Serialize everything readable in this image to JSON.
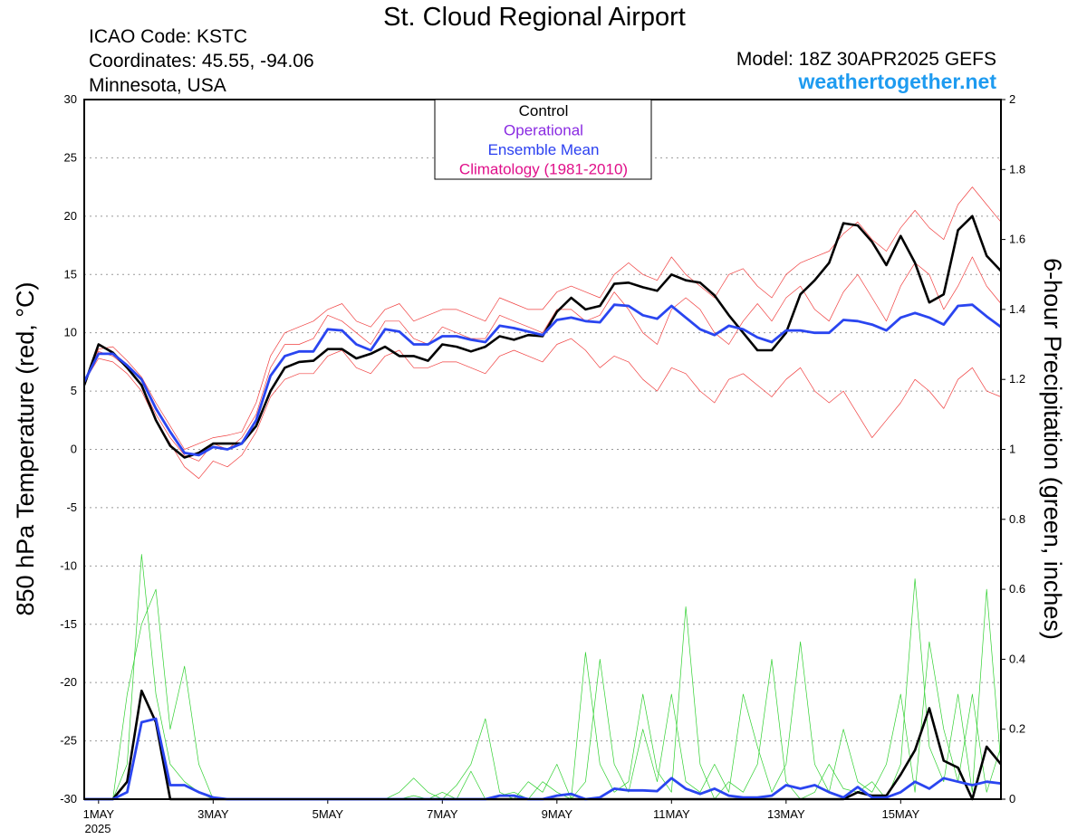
{
  "chart_data": {
    "type": "line",
    "title": "St. Cloud Regional Airport",
    "info": [
      "ICAO Code: KSTC",
      "Coordinates: 45.55, -94.06",
      "Minnesota, USA"
    ],
    "model": "Model: 18Z 30APR2025 GEFS",
    "source": "weathertogether.net",
    "ylabel": "850 hPa Temperature (red, °C)",
    "y2label": "6-hour Precipitation (green, inches)",
    "year": "2025",
    "legend": [
      {
        "name": "Control",
        "color": "#000000"
      },
      {
        "name": "Operational",
        "color": "#8a2be2"
      },
      {
        "name": "Ensemble Mean",
        "color": "#2a3ff0"
      },
      {
        "name": "Climatology (1981-2010)",
        "color": "#e0108a"
      }
    ],
    "grid": true,
    "xlim": [
      -6,
      378
    ],
    "xticks": [
      {
        "value": 0,
        "label": "1MAY"
      },
      {
        "value": 48,
        "label": "3MAY"
      },
      {
        "value": 96,
        "label": "5MAY"
      },
      {
        "value": 144,
        "label": "7MAY"
      },
      {
        "value": 192,
        "label": "9MAY"
      },
      {
        "value": 240,
        "label": "11MAY"
      },
      {
        "value": 288,
        "label": "13MAY"
      },
      {
        "value": 336,
        "label": "15MAY"
      }
    ],
    "ylim": [
      -30,
      30
    ],
    "yticks": [
      -30,
      -25,
      -20,
      -15,
      -10,
      -5,
      0,
      5,
      10,
      15,
      20,
      25,
      30
    ],
    "y2lim": [
      0,
      2
    ],
    "y2ticks": [
      0,
      0.2,
      0.4,
      0.6,
      0.8,
      1,
      1.2,
      1.4,
      1.6,
      1.8,
      2
    ],
    "x": [
      -6,
      0,
      6,
      12,
      18,
      24,
      30,
      36,
      42,
      48,
      54,
      60,
      66,
      72,
      78,
      84,
      90,
      96,
      102,
      108,
      114,
      120,
      126,
      132,
      138,
      144,
      150,
      156,
      162,
      168,
      174,
      180,
      186,
      192,
      198,
      204,
      210,
      216,
      222,
      228,
      234,
      240,
      246,
      252,
      258,
      264,
      270,
      276,
      282,
      288,
      294,
      300,
      306,
      312,
      318,
      324,
      330,
      336,
      342,
      348,
      354,
      360,
      366,
      372,
      378
    ],
    "series": [
      {
        "color": "#f04040",
        "width": 0.7,
        "values": [
          5.6,
          8.6,
          8.8,
          7.6,
          6.2,
          4.0,
          2.0,
          0.0,
          0.5,
          1.0,
          1.2,
          1.5,
          4.0,
          8.0,
          10.0,
          10.5,
          11.0,
          12.0,
          12.5,
          11.0,
          10.5,
          12.0,
          12.5,
          11.0,
          11.5,
          12.0,
          12.0,
          11.5,
          11.0,
          13.0,
          12.5,
          12.0,
          12.0,
          13.5,
          14.0,
          13.5,
          13.0,
          15.0,
          16.0,
          15.0,
          14.5,
          16.5,
          15.0,
          14.0,
          13.0,
          15.0,
          15.5,
          14.0,
          13.0,
          15.0,
          16.0,
          16.5,
          17.0,
          18.5,
          19.5,
          18.0,
          17.0,
          19.0,
          20.5,
          19.0,
          18.0,
          21.0,
          22.5,
          21.0,
          19.5
        ]
      },
      {
        "color": "#f04040",
        "width": 0.7,
        "values": [
          5.8,
          7.8,
          7.5,
          6.5,
          5.0,
          2.5,
          0.5,
          -1.5,
          -2.5,
          -1.0,
          -1.5,
          -0.5,
          1.5,
          4.5,
          6.0,
          6.5,
          6.5,
          8.0,
          8.5,
          7.0,
          6.5,
          8.0,
          8.5,
          7.0,
          7.0,
          7.5,
          7.5,
          7.0,
          6.5,
          8.0,
          8.5,
          8.0,
          7.5,
          9.0,
          9.5,
          8.5,
          7.0,
          8.0,
          7.5,
          6.0,
          5.0,
          7.0,
          6.5,
          5.0,
          4.0,
          6.0,
          6.5,
          5.5,
          4.5,
          6.0,
          7.0,
          5.0,
          4.0,
          5.0,
          3.0,
          1.0,
          2.5,
          4.0,
          6.0,
          5.0,
          3.5,
          6.0,
          7.0,
          5.0,
          4.5
        ]
      },
      {
        "color": "#f04040",
        "width": 0.7,
        "values": [
          5.5,
          8.4,
          8.0,
          7.0,
          5.5,
          3.0,
          1.0,
          -0.5,
          -1.0,
          0.5,
          0.0,
          1.0,
          3.0,
          7.0,
          9.0,
          9.0,
          9.5,
          11.5,
          11.0,
          10.0,
          9.0,
          11.0,
          11.0,
          9.5,
          9.0,
          10.5,
          10.0,
          9.5,
          9.5,
          11.5,
          11.0,
          10.5,
          10.0,
          12.0,
          12.0,
          11.0,
          11.5,
          13.5,
          12.0,
          10.0,
          9.0,
          12.0,
          13.0,
          12.0,
          10.0,
          9.0,
          11.0,
          12.5,
          11.0,
          13.0,
          14.0,
          12.0,
          11.0,
          13.5,
          15.0,
          13.0,
          11.0,
          14.0,
          16.0,
          15.0,
          12.0,
          14.0,
          16.5,
          14.0,
          12.5
        ]
      },
      {
        "color": "#30d030",
        "width": 0.7,
        "axis": "y2",
        "values": [
          0,
          0,
          0,
          0.1,
          0.7,
          0.3,
          0.1,
          0.05,
          0.02,
          0,
          0,
          0,
          0,
          0,
          0,
          0,
          0,
          0,
          0,
          0,
          0,
          0,
          0,
          0.01,
          0,
          0.02,
          0,
          0.08,
          0,
          0.01,
          0.02,
          0,
          0.05,
          0.02,
          0,
          0.42,
          0.1,
          0.02,
          0.05,
          0.3,
          0.08,
          0.02,
          0.55,
          0.1,
          0,
          0.05,
          0.02,
          0.1,
          0.4,
          0.05,
          0,
          0.02,
          0.1,
          0.03,
          0.02,
          0.05,
          0,
          0.1,
          0.63,
          0.15,
          0.05,
          0.3,
          0.02,
          0.6,
          0.1
        ]
      },
      {
        "color": "#30d030",
        "width": 0.7,
        "axis": "y2",
        "values": [
          0,
          0,
          0,
          0.3,
          0.5,
          0.6,
          0.2,
          0.38,
          0.1,
          0,
          0,
          0,
          0,
          0,
          0,
          0,
          0,
          0,
          0,
          0,
          0,
          0,
          0.02,
          0.06,
          0.02,
          0,
          0.04,
          0.1,
          0.23,
          0.02,
          0,
          0.05,
          0.02,
          0.1,
          0,
          0.05,
          0.4,
          0.1,
          0.02,
          0.2,
          0.05,
          0.3,
          0.05,
          0.02,
          0.1,
          0.02,
          0.3,
          0.15,
          0.02,
          0.1,
          0.45,
          0.1,
          0.02,
          0.2,
          0.05,
          0.02,
          0.1,
          0.3,
          0.02,
          0.45,
          0.2,
          0.05,
          0.3,
          0.02,
          0.15
        ]
      },
      {
        "color": "#000000",
        "width": 2.6,
        "values": [
          5.5,
          9.0,
          8.3,
          7.0,
          5.5,
          2.5,
          0.3,
          -0.7,
          -0.3,
          0.5,
          0.5,
          0.5,
          2.0,
          5.0,
          7.0,
          7.5,
          7.6,
          8.6,
          8.6,
          7.8,
          8.2,
          8.8,
          8.0,
          8.0,
          7.6,
          9.0,
          8.8,
          8.4,
          8.8,
          9.7,
          9.4,
          9.8,
          9.7,
          11.8,
          13.0,
          12.0,
          12.3,
          14.2,
          14.3,
          13.9,
          13.6,
          15.0,
          14.5,
          14.3,
          13.2,
          11.5,
          10.0,
          8.5,
          8.5,
          10.0,
          13.3,
          14.5,
          16.0,
          19.4,
          19.2,
          17.8,
          15.8,
          18.3,
          16.0,
          12.6,
          13.3,
          18.8,
          20.0,
          16.6,
          15.3
        ]
      },
      {
        "color": "#2a45f0",
        "width": 2.8,
        "values": [
          5.8,
          8.2,
          8.2,
          7.2,
          6.0,
          3.5,
          1.5,
          -0.3,
          -0.5,
          0.2,
          0.0,
          0.5,
          2.5,
          6.3,
          8.0,
          8.4,
          8.4,
          10.3,
          10.2,
          9.0,
          8.5,
          10.3,
          10.1,
          9.0,
          9.0,
          9.7,
          9.7,
          9.4,
          9.2,
          10.6,
          10.4,
          10.1,
          9.8,
          11.1,
          11.3,
          11.0,
          10.9,
          12.4,
          12.3,
          11.5,
          11.2,
          12.3,
          11.3,
          10.3,
          9.8,
          10.6,
          10.3,
          9.6,
          9.2,
          10.2,
          10.2,
          10.0,
          10.0,
          11.1,
          11.0,
          10.7,
          10.2,
          11.3,
          11.7,
          11.3,
          10.7,
          12.3,
          12.4,
          11.4,
          10.5
        ]
      },
      {
        "color": "#000000",
        "width": 2.6,
        "axis": "y2",
        "values": [
          0,
          0,
          0,
          0.05,
          0.31,
          0.22,
          0,
          0,
          0,
          0,
          0,
          0,
          0,
          0,
          0,
          0,
          0,
          0,
          0,
          0,
          0,
          0,
          0,
          0,
          0,
          0,
          0,
          0,
          0,
          0,
          0,
          0,
          0,
          0,
          0,
          0,
          0,
          0,
          0,
          0,
          0,
          0,
          0,
          0,
          0,
          0,
          0,
          0,
          0,
          0,
          0,
          0,
          0,
          0,
          0.02,
          0.01,
          0.01,
          0.07,
          0.14,
          0.26,
          0.11,
          0.09,
          0,
          0.15,
          0.1
        ]
      },
      {
        "color": "#2a45f0",
        "width": 2.8,
        "axis": "y2",
        "values": [
          0,
          0,
          0,
          0.02,
          0.22,
          0.23,
          0.04,
          0.04,
          0.02,
          0.005,
          0,
          0,
          0,
          0,
          0,
          0,
          0,
          0,
          0,
          0,
          0,
          0,
          0,
          0,
          0,
          0,
          0,
          0,
          0,
          0.01,
          0.01,
          0,
          0,
          0.01,
          0.015,
          0,
          0.005,
          0.03,
          0.025,
          0.025,
          0.023,
          0.06,
          0.03,
          0.015,
          0.03,
          0.01,
          0.005,
          0.005,
          0.01,
          0.04,
          0.03,
          0.04,
          0.02,
          0.005,
          0.035,
          0.005,
          0.005,
          0.02,
          0.05,
          0.03,
          0.06,
          0.05,
          0.04,
          0.05,
          0.045
        ]
      }
    ]
  }
}
